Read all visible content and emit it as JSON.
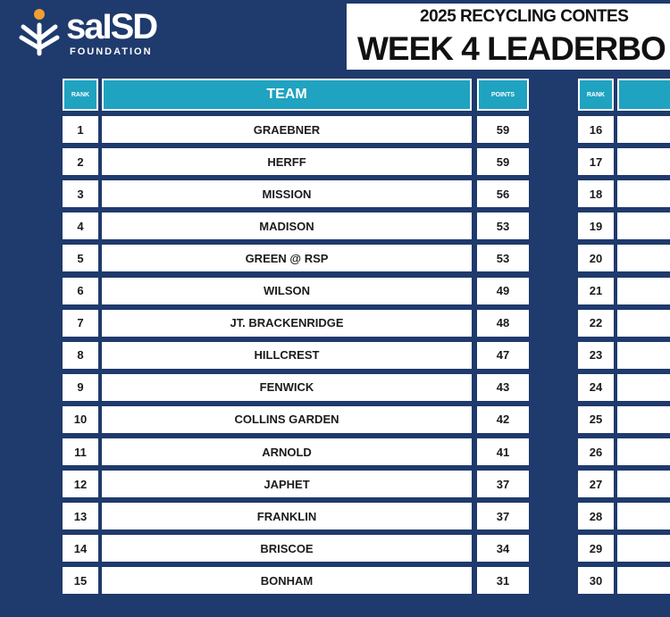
{
  "header": {
    "logo": "saISD",
    "logo_sub": "FOUNDATION",
    "title_line1": "2025 RECYCLING CONTES",
    "title_line2": "WEEK 4 LEADERBO"
  },
  "table_left": {
    "columns": [
      "RANK",
      "TEAM",
      "POINTS"
    ],
    "rows": [
      [
        1,
        "GRAEBNER",
        59
      ],
      [
        2,
        "HERFF",
        59
      ],
      [
        3,
        "MISSION",
        56
      ],
      [
        4,
        "MADISON",
        53
      ],
      [
        5,
        "GREEN @ RSP",
        53
      ],
      [
        6,
        "WILSON",
        49
      ],
      [
        7,
        "JT. BRACKENRIDGE",
        48
      ],
      [
        8,
        "HILLCREST",
        47
      ],
      [
        9,
        "FENWICK",
        43
      ],
      [
        10,
        "COLLINS GARDEN",
        42
      ],
      [
        11,
        "ARNOLD",
        41
      ],
      [
        12,
        "JAPHET",
        37
      ],
      [
        13,
        "FRANKLIN",
        37
      ],
      [
        14,
        "BRISCOE",
        34
      ],
      [
        15,
        "BONHAM",
        31
      ]
    ]
  },
  "table_right": {
    "columns": [
      "RANK"
    ],
    "ranks": [
      16,
      17,
      18,
      19,
      20,
      21,
      22,
      23,
      24,
      25,
      26,
      27,
      28,
      29,
      30
    ]
  }
}
